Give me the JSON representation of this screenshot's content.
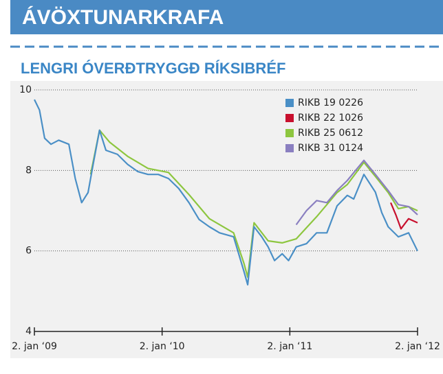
{
  "header": "ÁVÖXTUNARKRAFA",
  "chart_data": {
    "type": "line",
    "title": "LENGRI ÓVERÐTRYGGÐ RÍKSIBRÉF",
    "xlim": [
      2009,
      2012
    ],
    "xticks": [
      {
        "value": 2009,
        "label": "2. jan ‘09"
      },
      {
        "value": 2010,
        "label": "2. jan ‘10"
      },
      {
        "value": 2011,
        "label": "2. jan ‘11"
      },
      {
        "value": 2012,
        "label": "2. jan ‘12"
      }
    ],
    "ylim": [
      4,
      10
    ],
    "yticks": [
      4,
      6,
      8,
      10
    ],
    "grid": true,
    "legend": "top-right",
    "series": [
      {
        "name": "RIKB 19 0226",
        "color": "#4a8fc6",
        "x": [
          2009.0,
          2009.04,
          2009.08,
          2009.13,
          2009.19,
          2009.27,
          2009.32,
          2009.37,
          2009.42,
          2009.46,
          2009.51,
          2009.56,
          2009.65,
          2009.73,
          2009.81,
          2009.89,
          2009.97,
          2010.05,
          2010.13,
          2010.21,
          2010.29,
          2010.37,
          2010.45,
          2010.56,
          2010.64,
          2010.67,
          2010.72,
          2010.78,
          2010.83,
          2010.88,
          2010.94,
          2010.99,
          2011.05,
          2011.13,
          2011.21,
          2011.29,
          2011.37,
          2011.45,
          2011.5,
          2011.58,
          2011.67,
          2011.72,
          2011.77,
          2011.85,
          2011.93,
          2012.0
        ],
        "values": [
          9.76,
          9.5,
          8.8,
          8.65,
          8.75,
          8.65,
          7.8,
          7.2,
          7.45,
          8.15,
          9.0,
          8.5,
          8.4,
          8.15,
          7.97,
          7.9,
          7.9,
          7.8,
          7.55,
          7.2,
          6.78,
          6.6,
          6.45,
          6.35,
          5.5,
          5.16,
          6.6,
          6.35,
          6.1,
          5.76,
          5.93,
          5.76,
          6.1,
          6.18,
          6.45,
          6.45,
          7.12,
          7.38,
          7.29,
          7.9,
          7.46,
          6.95,
          6.6,
          6.35,
          6.45,
          6.0
        ]
      },
      {
        "name": "RIKB 22 1026",
        "color": "#c8102e",
        "x": [
          2011.79,
          2011.83,
          2011.87,
          2011.93,
          2012.0
        ],
        "values": [
          7.2,
          6.9,
          6.55,
          6.8,
          6.7
        ]
      },
      {
        "name": "RIKB 25 0612",
        "color": "#8dc63f",
        "x": [
          2009.44,
          2009.51,
          2009.59,
          2009.73,
          2009.89,
          2010.05,
          2010.21,
          2010.37,
          2010.56,
          2010.64,
          2010.67,
          2010.72,
          2010.83,
          2010.94,
          2011.05,
          2011.21,
          2011.37,
          2011.45,
          2011.58,
          2011.67,
          2011.77,
          2011.85,
          2011.93,
          2012.0
        ],
        "values": [
          7.9,
          9.0,
          8.7,
          8.35,
          8.05,
          7.95,
          7.4,
          6.8,
          6.45,
          5.7,
          5.35,
          6.7,
          6.25,
          6.2,
          6.3,
          6.85,
          7.45,
          7.65,
          8.2,
          7.85,
          7.45,
          7.05,
          7.1,
          7.0
        ]
      },
      {
        "name": "RIKB 31 0124",
        "color": "#8a7fc0",
        "x": [
          2011.05,
          2011.13,
          2011.21,
          2011.29,
          2011.37,
          2011.45,
          2011.58,
          2011.67,
          2011.77,
          2011.85,
          2011.93,
          2012.0
        ],
        "values": [
          6.65,
          7.0,
          7.25,
          7.2,
          7.5,
          7.75,
          8.25,
          7.9,
          7.5,
          7.15,
          7.1,
          6.9
        ]
      }
    ]
  }
}
